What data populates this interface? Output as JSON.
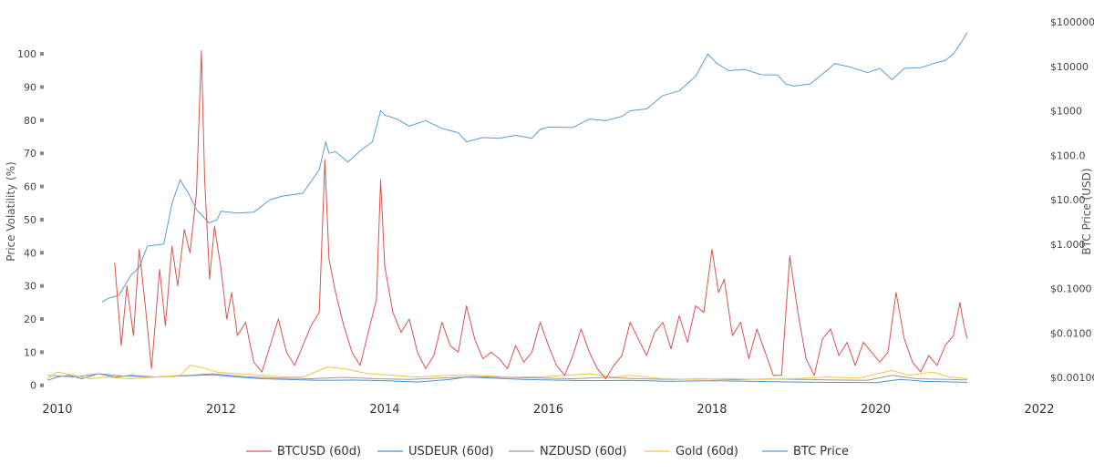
{
  "chart_data": {
    "type": "line",
    "title": "",
    "xlabel": "",
    "ylabel_left": "Price Volatility (%)",
    "ylabel_right": "BTC Price (USD)",
    "x_ticks": [
      "2010",
      "2012",
      "2014",
      "2016",
      "2018",
      "2020",
      "2022"
    ],
    "x_range": [
      2009.8,
      2022.0
    ],
    "y_left_ticks": [
      "0",
      "10",
      "20",
      "30",
      "40",
      "50",
      "60",
      "70",
      "80",
      "90",
      "100"
    ],
    "y_left_range": [
      -2,
      108
    ],
    "y_right_ticks": [
      "$0.00100",
      "$0.0100",
      "$0.1000",
      "$1.000",
      "$10.00",
      "$100.0",
      "$1000",
      "$10000",
      "$100000"
    ],
    "y_right_scale": "log",
    "y_right_range_log10": [
      -3,
      5
    ],
    "grid": false,
    "legend_position": "bottom",
    "series": [
      {
        "name": "BTCUSD (60d)",
        "axis": "left",
        "color": "#d9534f",
        "points": [
          [
            2010.7,
            37
          ],
          [
            2010.78,
            12
          ],
          [
            2010.85,
            30
          ],
          [
            2010.93,
            15
          ],
          [
            2011.0,
            41
          ],
          [
            2011.07,
            25
          ],
          [
            2011.15,
            5
          ],
          [
            2011.25,
            35
          ],
          [
            2011.32,
            18
          ],
          [
            2011.4,
            42
          ],
          [
            2011.47,
            30
          ],
          [
            2011.55,
            47
          ],
          [
            2011.62,
            40
          ],
          [
            2011.7,
            58
          ],
          [
            2011.76,
            101
          ],
          [
            2011.8,
            62
          ],
          [
            2011.86,
            32
          ],
          [
            2011.92,
            48
          ],
          [
            2012.0,
            35
          ],
          [
            2012.07,
            20
          ],
          [
            2012.13,
            28
          ],
          [
            2012.2,
            15
          ],
          [
            2012.3,
            19
          ],
          [
            2012.4,
            7
          ],
          [
            2012.5,
            4
          ],
          [
            2012.6,
            12
          ],
          [
            2012.7,
            20
          ],
          [
            2012.8,
            10
          ],
          [
            2012.9,
            6
          ],
          [
            2013.0,
            12
          ],
          [
            2013.1,
            18
          ],
          [
            2013.2,
            22
          ],
          [
            2013.27,
            68
          ],
          [
            2013.32,
            38
          ],
          [
            2013.4,
            28
          ],
          [
            2013.5,
            18
          ],
          [
            2013.6,
            10
          ],
          [
            2013.7,
            6
          ],
          [
            2013.8,
            16
          ],
          [
            2013.9,
            26
          ],
          [
            2013.95,
            62
          ],
          [
            2014.0,
            36
          ],
          [
            2014.1,
            22
          ],
          [
            2014.2,
            16
          ],
          [
            2014.3,
            20
          ],
          [
            2014.4,
            10
          ],
          [
            2014.5,
            5
          ],
          [
            2014.6,
            9
          ],
          [
            2014.7,
            19
          ],
          [
            2014.8,
            12
          ],
          [
            2014.9,
            10
          ],
          [
            2015.0,
            24
          ],
          [
            2015.1,
            14
          ],
          [
            2015.2,
            8
          ],
          [
            2015.3,
            10
          ],
          [
            2015.4,
            8
          ],
          [
            2015.5,
            5
          ],
          [
            2015.6,
            12
          ],
          [
            2015.7,
            7
          ],
          [
            2015.8,
            10
          ],
          [
            2015.9,
            19
          ],
          [
            2016.0,
            12
          ],
          [
            2016.1,
            6
          ],
          [
            2016.2,
            3
          ],
          [
            2016.3,
            9
          ],
          [
            2016.4,
            17
          ],
          [
            2016.5,
            10
          ],
          [
            2016.6,
            5
          ],
          [
            2016.7,
            2
          ],
          [
            2016.8,
            6
          ],
          [
            2016.9,
            9
          ],
          [
            2017.0,
            19
          ],
          [
            2017.1,
            14
          ],
          [
            2017.2,
            9
          ],
          [
            2017.3,
            16
          ],
          [
            2017.4,
            19
          ],
          [
            2017.5,
            11
          ],
          [
            2017.6,
            21
          ],
          [
            2017.7,
            13
          ],
          [
            2017.8,
            24
          ],
          [
            2017.9,
            22
          ],
          [
            2018.0,
            41
          ],
          [
            2018.08,
            28
          ],
          [
            2018.15,
            32
          ],
          [
            2018.25,
            15
          ],
          [
            2018.35,
            19
          ],
          [
            2018.45,
            8
          ],
          [
            2018.55,
            17
          ],
          [
            2018.65,
            10
          ],
          [
            2018.75,
            3
          ],
          [
            2018.85,
            3
          ],
          [
            2018.95,
            39
          ],
          [
            2019.05,
            22
          ],
          [
            2019.15,
            8
          ],
          [
            2019.25,
            3
          ],
          [
            2019.35,
            14
          ],
          [
            2019.45,
            17
          ],
          [
            2019.55,
            9
          ],
          [
            2019.65,
            13
          ],
          [
            2019.75,
            6
          ],
          [
            2019.85,
            13
          ],
          [
            2019.95,
            10
          ],
          [
            2020.05,
            7
          ],
          [
            2020.15,
            10
          ],
          [
            2020.25,
            28
          ],
          [
            2020.35,
            14
          ],
          [
            2020.45,
            7
          ],
          [
            2020.55,
            4
          ],
          [
            2020.65,
            9
          ],
          [
            2020.75,
            6
          ],
          [
            2020.85,
            12
          ],
          [
            2020.95,
            15
          ],
          [
            2021.03,
            25
          ],
          [
            2021.08,
            18
          ],
          [
            2021.12,
            14
          ]
        ]
      },
      {
        "name": "USDEUR (60d)",
        "axis": "left",
        "color": "#4a90d9",
        "points": [
          [
            2009.88,
            1.5
          ],
          [
            2010.0,
            2.5
          ],
          [
            2010.15,
            3.0
          ],
          [
            2010.3,
            2.0
          ],
          [
            2010.5,
            3.5
          ],
          [
            2010.7,
            2.5
          ],
          [
            2010.9,
            3.0
          ],
          [
            2011.2,
            2.5
          ],
          [
            2011.5,
            2.8
          ],
          [
            2011.7,
            3.0
          ],
          [
            2011.9,
            3.2
          ],
          [
            2012.2,
            2.5
          ],
          [
            2012.5,
            2.0
          ],
          [
            2012.8,
            1.8
          ],
          [
            2013.2,
            1.5
          ],
          [
            2013.6,
            1.6
          ],
          [
            2014.0,
            1.4
          ],
          [
            2014.4,
            1.0
          ],
          [
            2014.8,
            1.8
          ],
          [
            2015.0,
            2.5
          ],
          [
            2015.3,
            2.2
          ],
          [
            2015.7,
            1.8
          ],
          [
            2016.0,
            1.6
          ],
          [
            2016.5,
            1.4
          ],
          [
            2017.0,
            1.5
          ],
          [
            2017.5,
            1.2
          ],
          [
            2018.0,
            1.4
          ],
          [
            2018.5,
            1.2
          ],
          [
            2019.0,
            1.0
          ],
          [
            2019.5,
            0.9
          ],
          [
            2020.0,
            0.8
          ],
          [
            2020.3,
            1.8
          ],
          [
            2020.6,
            1.2
          ],
          [
            2021.0,
            1.0
          ],
          [
            2021.12,
            0.9
          ]
        ]
      },
      {
        "name": "NZDUSD (60d)",
        "axis": "left",
        "color": "#999999",
        "points": [
          [
            2009.88,
            3.0
          ],
          [
            2010.2,
            2.5
          ],
          [
            2010.5,
            3.5
          ],
          [
            2010.8,
            2.8
          ],
          [
            2011.2,
            2.5
          ],
          [
            2011.6,
            3.0
          ],
          [
            2011.9,
            3.5
          ],
          [
            2012.3,
            2.6
          ],
          [
            2012.7,
            2.2
          ],
          [
            2013.1,
            2.0
          ],
          [
            2013.5,
            2.4
          ],
          [
            2013.9,
            2.0
          ],
          [
            2014.3,
            1.8
          ],
          [
            2014.7,
            2.2
          ],
          [
            2015.1,
            2.6
          ],
          [
            2015.5,
            2.4
          ],
          [
            2015.9,
            2.2
          ],
          [
            2016.3,
            2.0
          ],
          [
            2016.7,
            2.4
          ],
          [
            2017.1,
            2.0
          ],
          [
            2017.5,
            1.8
          ],
          [
            2017.9,
            1.9
          ],
          [
            2018.3,
            1.7
          ],
          [
            2018.7,
            1.9
          ],
          [
            2019.1,
            1.8
          ],
          [
            2019.5,
            1.6
          ],
          [
            2019.9,
            1.5
          ],
          [
            2020.2,
            3.0
          ],
          [
            2020.5,
            2.0
          ],
          [
            2020.9,
            1.8
          ],
          [
            2021.12,
            1.6
          ]
        ]
      },
      {
        "name": "Gold (60d)",
        "axis": "left",
        "color": "#f5c242",
        "points": [
          [
            2009.88,
            2.0
          ],
          [
            2010.0,
            4.0
          ],
          [
            2010.2,
            3.0
          ],
          [
            2010.4,
            2.0
          ],
          [
            2010.6,
            2.5
          ],
          [
            2010.9,
            2.0
          ],
          [
            2011.2,
            2.5
          ],
          [
            2011.5,
            3.0
          ],
          [
            2011.62,
            6.0
          ],
          [
            2011.75,
            5.5
          ],
          [
            2011.95,
            4.0
          ],
          [
            2012.2,
            3.5
          ],
          [
            2012.5,
            3.0
          ],
          [
            2012.8,
            2.5
          ],
          [
            2013.0,
            2.5
          ],
          [
            2013.3,
            5.5
          ],
          [
            2013.5,
            5.0
          ],
          [
            2013.8,
            3.5
          ],
          [
            2014.1,
            3.0
          ],
          [
            2014.4,
            2.5
          ],
          [
            2014.8,
            3.0
          ],
          [
            2015.1,
            3.0
          ],
          [
            2015.5,
            2.5
          ],
          [
            2015.9,
            2.5
          ],
          [
            2016.2,
            3.0
          ],
          [
            2016.5,
            3.5
          ],
          [
            2016.8,
            2.5
          ],
          [
            2017.0,
            3.0
          ],
          [
            2017.4,
            2.0
          ],
          [
            2017.8,
            1.8
          ],
          [
            2018.2,
            2.0
          ],
          [
            2018.6,
            1.8
          ],
          [
            2019.0,
            2.0
          ],
          [
            2019.4,
            2.5
          ],
          [
            2019.8,
            2.2
          ],
          [
            2020.2,
            4.5
          ],
          [
            2020.4,
            3.0
          ],
          [
            2020.7,
            4.0
          ],
          [
            2020.9,
            2.5
          ],
          [
            2021.12,
            2.0
          ]
        ]
      },
      {
        "name": "BTC Price",
        "axis": "right",
        "color": "#5b9bd5",
        "points": [
          [
            2010.55,
            0.05
          ],
          [
            2010.62,
            0.06
          ],
          [
            2010.75,
            0.07
          ],
          [
            2010.9,
            0.2
          ],
          [
            2011.0,
            0.3
          ],
          [
            2011.1,
            0.9
          ],
          [
            2011.3,
            1.0
          ],
          [
            2011.4,
            8.0
          ],
          [
            2011.45,
            15.0
          ],
          [
            2011.5,
            28.0
          ],
          [
            2011.6,
            14.0
          ],
          [
            2011.7,
            6.0
          ],
          [
            2011.85,
            3.0
          ],
          [
            2011.95,
            3.5
          ],
          [
            2012.0,
            5.5
          ],
          [
            2012.2,
            5.0
          ],
          [
            2012.4,
            5.2
          ],
          [
            2012.6,
            10.0
          ],
          [
            2012.75,
            12.0
          ],
          [
            2012.9,
            13.0
          ],
          [
            2013.0,
            14.0
          ],
          [
            2013.2,
            47.0
          ],
          [
            2013.28,
            200.0
          ],
          [
            2013.32,
            110.0
          ],
          [
            2013.4,
            120.0
          ],
          [
            2013.55,
            70.0
          ],
          [
            2013.7,
            125.0
          ],
          [
            2013.85,
            200.0
          ],
          [
            2013.95,
            1000.0
          ],
          [
            2014.0,
            800.0
          ],
          [
            2014.15,
            650.0
          ],
          [
            2014.3,
            450.0
          ],
          [
            2014.5,
            600.0
          ],
          [
            2014.7,
            400.0
          ],
          [
            2014.9,
            320.0
          ],
          [
            2015.0,
            200.0
          ],
          [
            2015.2,
            250.0
          ],
          [
            2015.4,
            240.0
          ],
          [
            2015.6,
            280.0
          ],
          [
            2015.8,
            240.0
          ],
          [
            2015.9,
            380.0
          ],
          [
            2016.0,
            430.0
          ],
          [
            2016.3,
            420.0
          ],
          [
            2016.5,
            650.0
          ],
          [
            2016.7,
            600.0
          ],
          [
            2016.9,
            750.0
          ],
          [
            2017.0,
            1000.0
          ],
          [
            2017.2,
            1100.0
          ],
          [
            2017.4,
            2200.0
          ],
          [
            2017.6,
            2800.0
          ],
          [
            2017.8,
            6000.0
          ],
          [
            2017.95,
            19000.0
          ],
          [
            2018.05,
            12000.0
          ],
          [
            2018.2,
            8000.0
          ],
          [
            2018.4,
            8500.0
          ],
          [
            2018.6,
            6500.0
          ],
          [
            2018.8,
            6400.0
          ],
          [
            2018.9,
            4000.0
          ],
          [
            2019.0,
            3600.0
          ],
          [
            2019.2,
            4000.0
          ],
          [
            2019.4,
            8000.0
          ],
          [
            2019.5,
            11500.0
          ],
          [
            2019.7,
            9500.0
          ],
          [
            2019.9,
            7200.0
          ],
          [
            2020.05,
            9000.0
          ],
          [
            2020.2,
            5000.0
          ],
          [
            2020.35,
            9000.0
          ],
          [
            2020.55,
            9300.0
          ],
          [
            2020.7,
            11500.0
          ],
          [
            2020.85,
            13500.0
          ],
          [
            2020.95,
            19000.0
          ],
          [
            2021.05,
            35000.0
          ],
          [
            2021.12,
            58000.0
          ]
        ]
      }
    ]
  }
}
